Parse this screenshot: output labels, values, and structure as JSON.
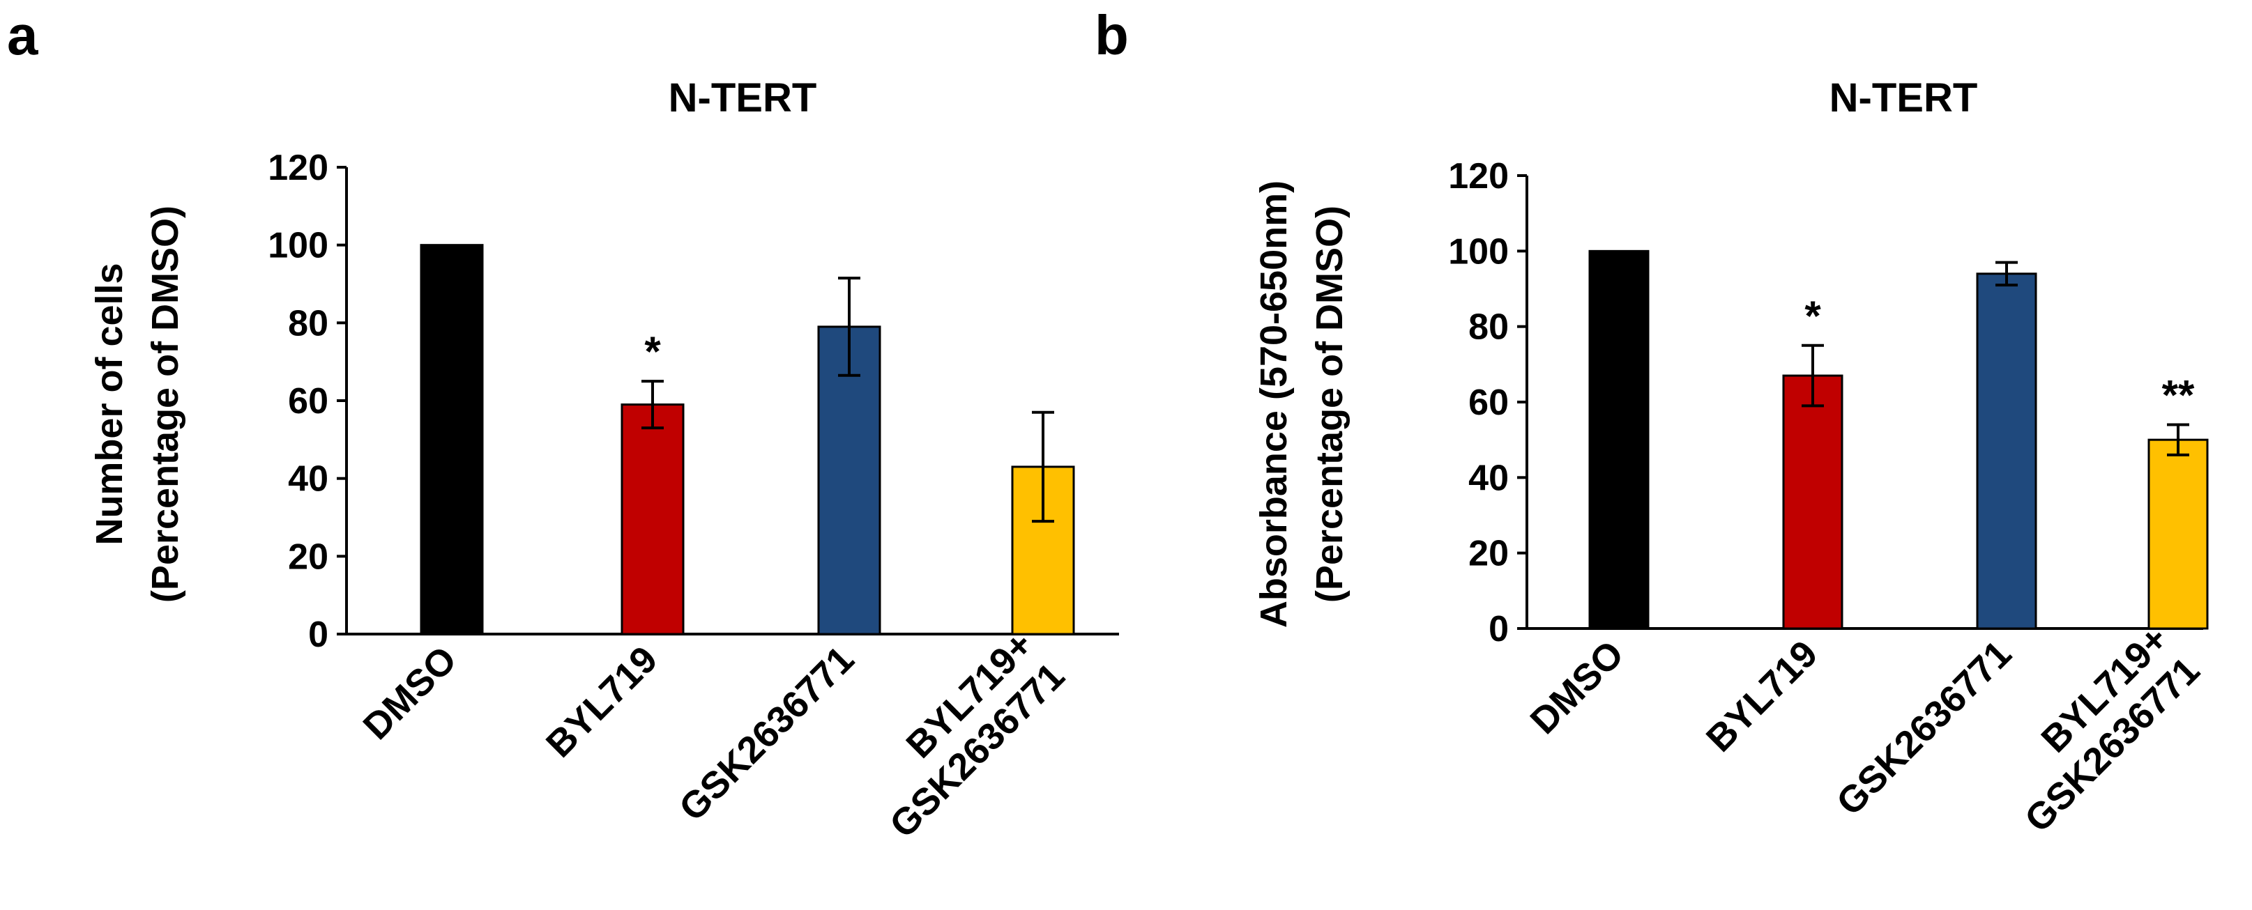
{
  "chart_data": [
    {
      "panel_label": "a",
      "type": "bar",
      "title": "N-TERT",
      "xlabel": "",
      "ylabel": [
        "Number of cells",
        "(Percentage of DMSO)"
      ],
      "ylim": [
        0,
        120
      ],
      "yticks": [
        0,
        20,
        40,
        60,
        80,
        100,
        120
      ],
      "grid": false,
      "categories": [
        [
          "DMSO"
        ],
        [
          "BYL719"
        ],
        [
          "GSK2636771"
        ],
        [
          "BYL719+",
          "GSK2636771"
        ]
      ],
      "values": [
        100,
        59,
        79,
        43
      ],
      "errors": [
        0,
        6,
        12.5,
        14
      ],
      "colors": [
        "#000000",
        "#c00000",
        "#1f497d",
        "#ffc000"
      ],
      "significance": [
        "",
        "*",
        "",
        ""
      ]
    },
    {
      "panel_label": "b",
      "type": "bar",
      "title": "N-TERT",
      "xlabel": "",
      "ylabel": [
        "Absorbance (570-650nm)",
        "(Percentage of DMSO)"
      ],
      "ylim": [
        0,
        120
      ],
      "yticks": [
        0,
        20,
        40,
        60,
        80,
        100,
        120
      ],
      "grid": false,
      "categories": [
        [
          "DMSO"
        ],
        [
          "BYL719"
        ],
        [
          "GSK2636771"
        ],
        [
          "BYL719+",
          "GSK2636771"
        ]
      ],
      "values": [
        100,
        67,
        94,
        50
      ],
      "errors": [
        0,
        8,
        3,
        4
      ],
      "colors": [
        "#000000",
        "#c00000",
        "#1f497d",
        "#ffc000"
      ],
      "significance": [
        "",
        "*",
        "",
        "**"
      ]
    }
  ]
}
